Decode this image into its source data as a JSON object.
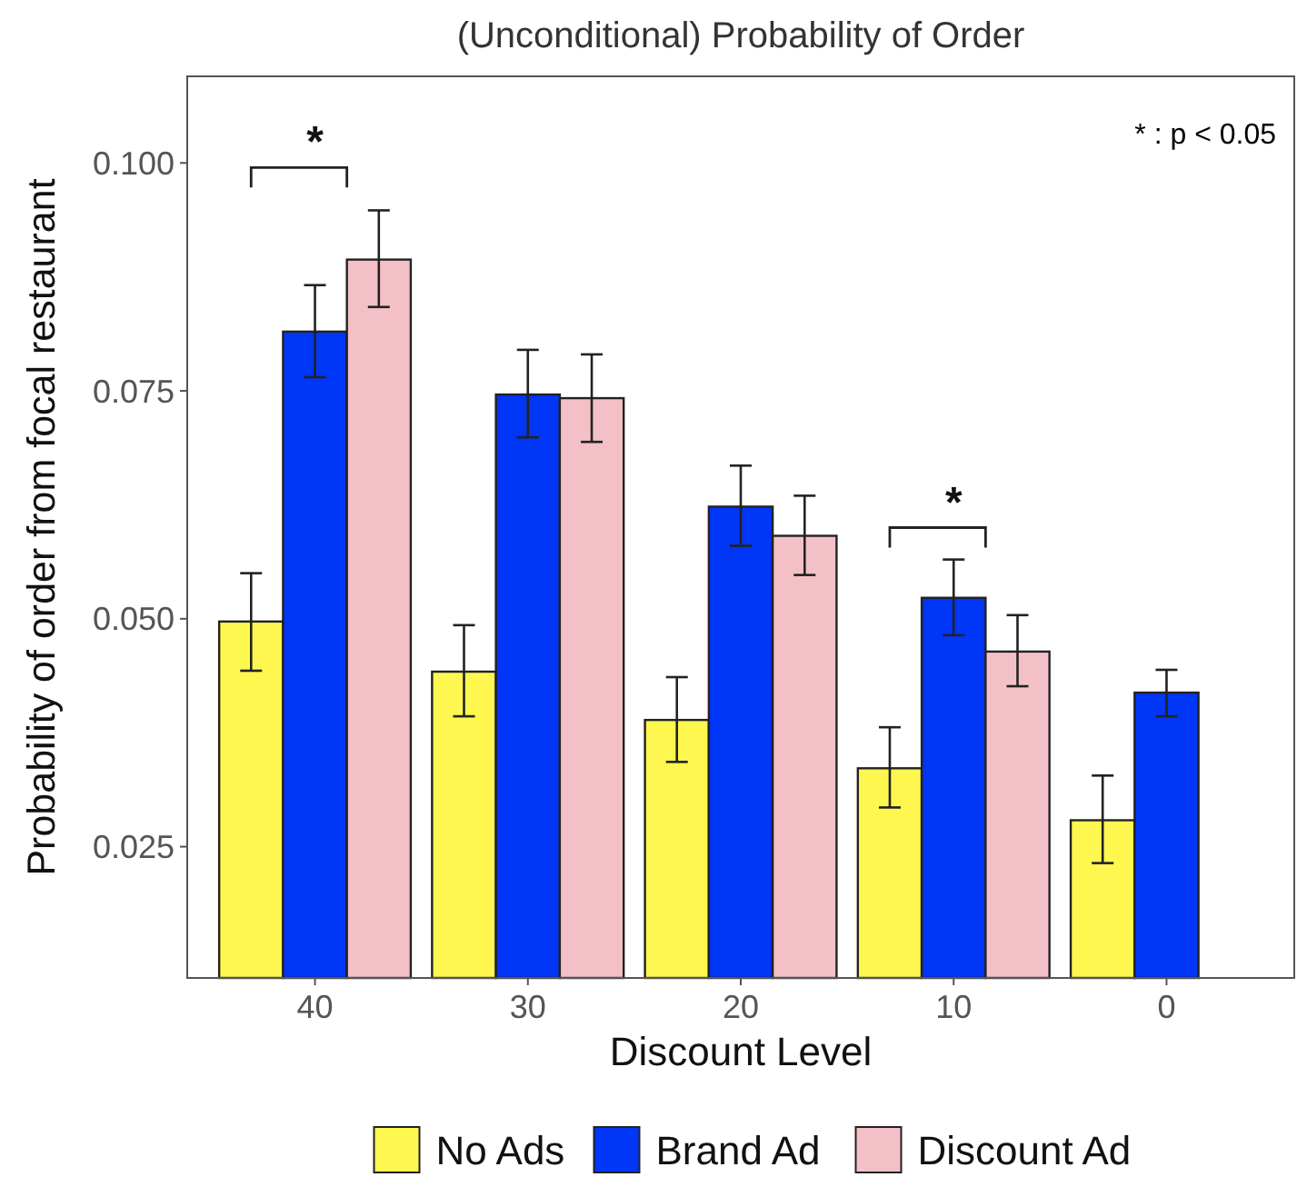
{
  "chart_data": {
    "type": "bar",
    "title": "(Unconditional) Probability of Order",
    "xlabel": "Discount Level",
    "ylabel": "Probability of order from focal restaurant",
    "categories": [
      "40",
      "30",
      "20",
      "10",
      "0"
    ],
    "series": [
      {
        "name": "No Ads",
        "color": "#fdf74f",
        "values": [
          0.0497,
          0.0442,
          0.0389,
          0.0336,
          0.0279
        ],
        "errors": [
          [
            0.0443,
            0.055
          ],
          [
            0.0393,
            0.0493
          ],
          [
            0.0343,
            0.0436
          ],
          [
            0.0293,
            0.0381
          ],
          [
            0.0232,
            0.0328
          ]
        ]
      },
      {
        "name": "Brand Ad",
        "color": "#0036f5",
        "values": [
          0.0815,
          0.0746,
          0.0623,
          0.0523,
          0.0419
        ],
        "errors": [
          [
            0.0765,
            0.0866
          ],
          [
            0.0699,
            0.0795
          ],
          [
            0.058,
            0.0668
          ],
          [
            0.0482,
            0.0565
          ],
          [
            0.0393,
            0.0444
          ]
        ]
      },
      {
        "name": "Discount Ad",
        "color": "#f4c0c8",
        "values": [
          0.0894,
          0.0742,
          0.0591,
          0.0464,
          null
        ],
        "errors": [
          [
            0.0842,
            0.0948
          ],
          [
            0.0694,
            0.079
          ],
          [
            0.0548,
            0.0635
          ],
          [
            0.0426,
            0.0504
          ],
          null
        ]
      }
    ],
    "ylim": [
      0.0106,
      0.1095
    ],
    "yticks": [
      {
        "value": 0.025,
        "label": "0.025"
      },
      {
        "value": 0.05,
        "label": "0.050"
      },
      {
        "value": 0.075,
        "label": "0.075"
      },
      {
        "value": 0.1,
        "label": "0.100"
      }
    ],
    "grid": false,
    "legend": "bottom",
    "annotations": [
      "*",
      "*",
      "* : p < 0.05"
    ]
  }
}
